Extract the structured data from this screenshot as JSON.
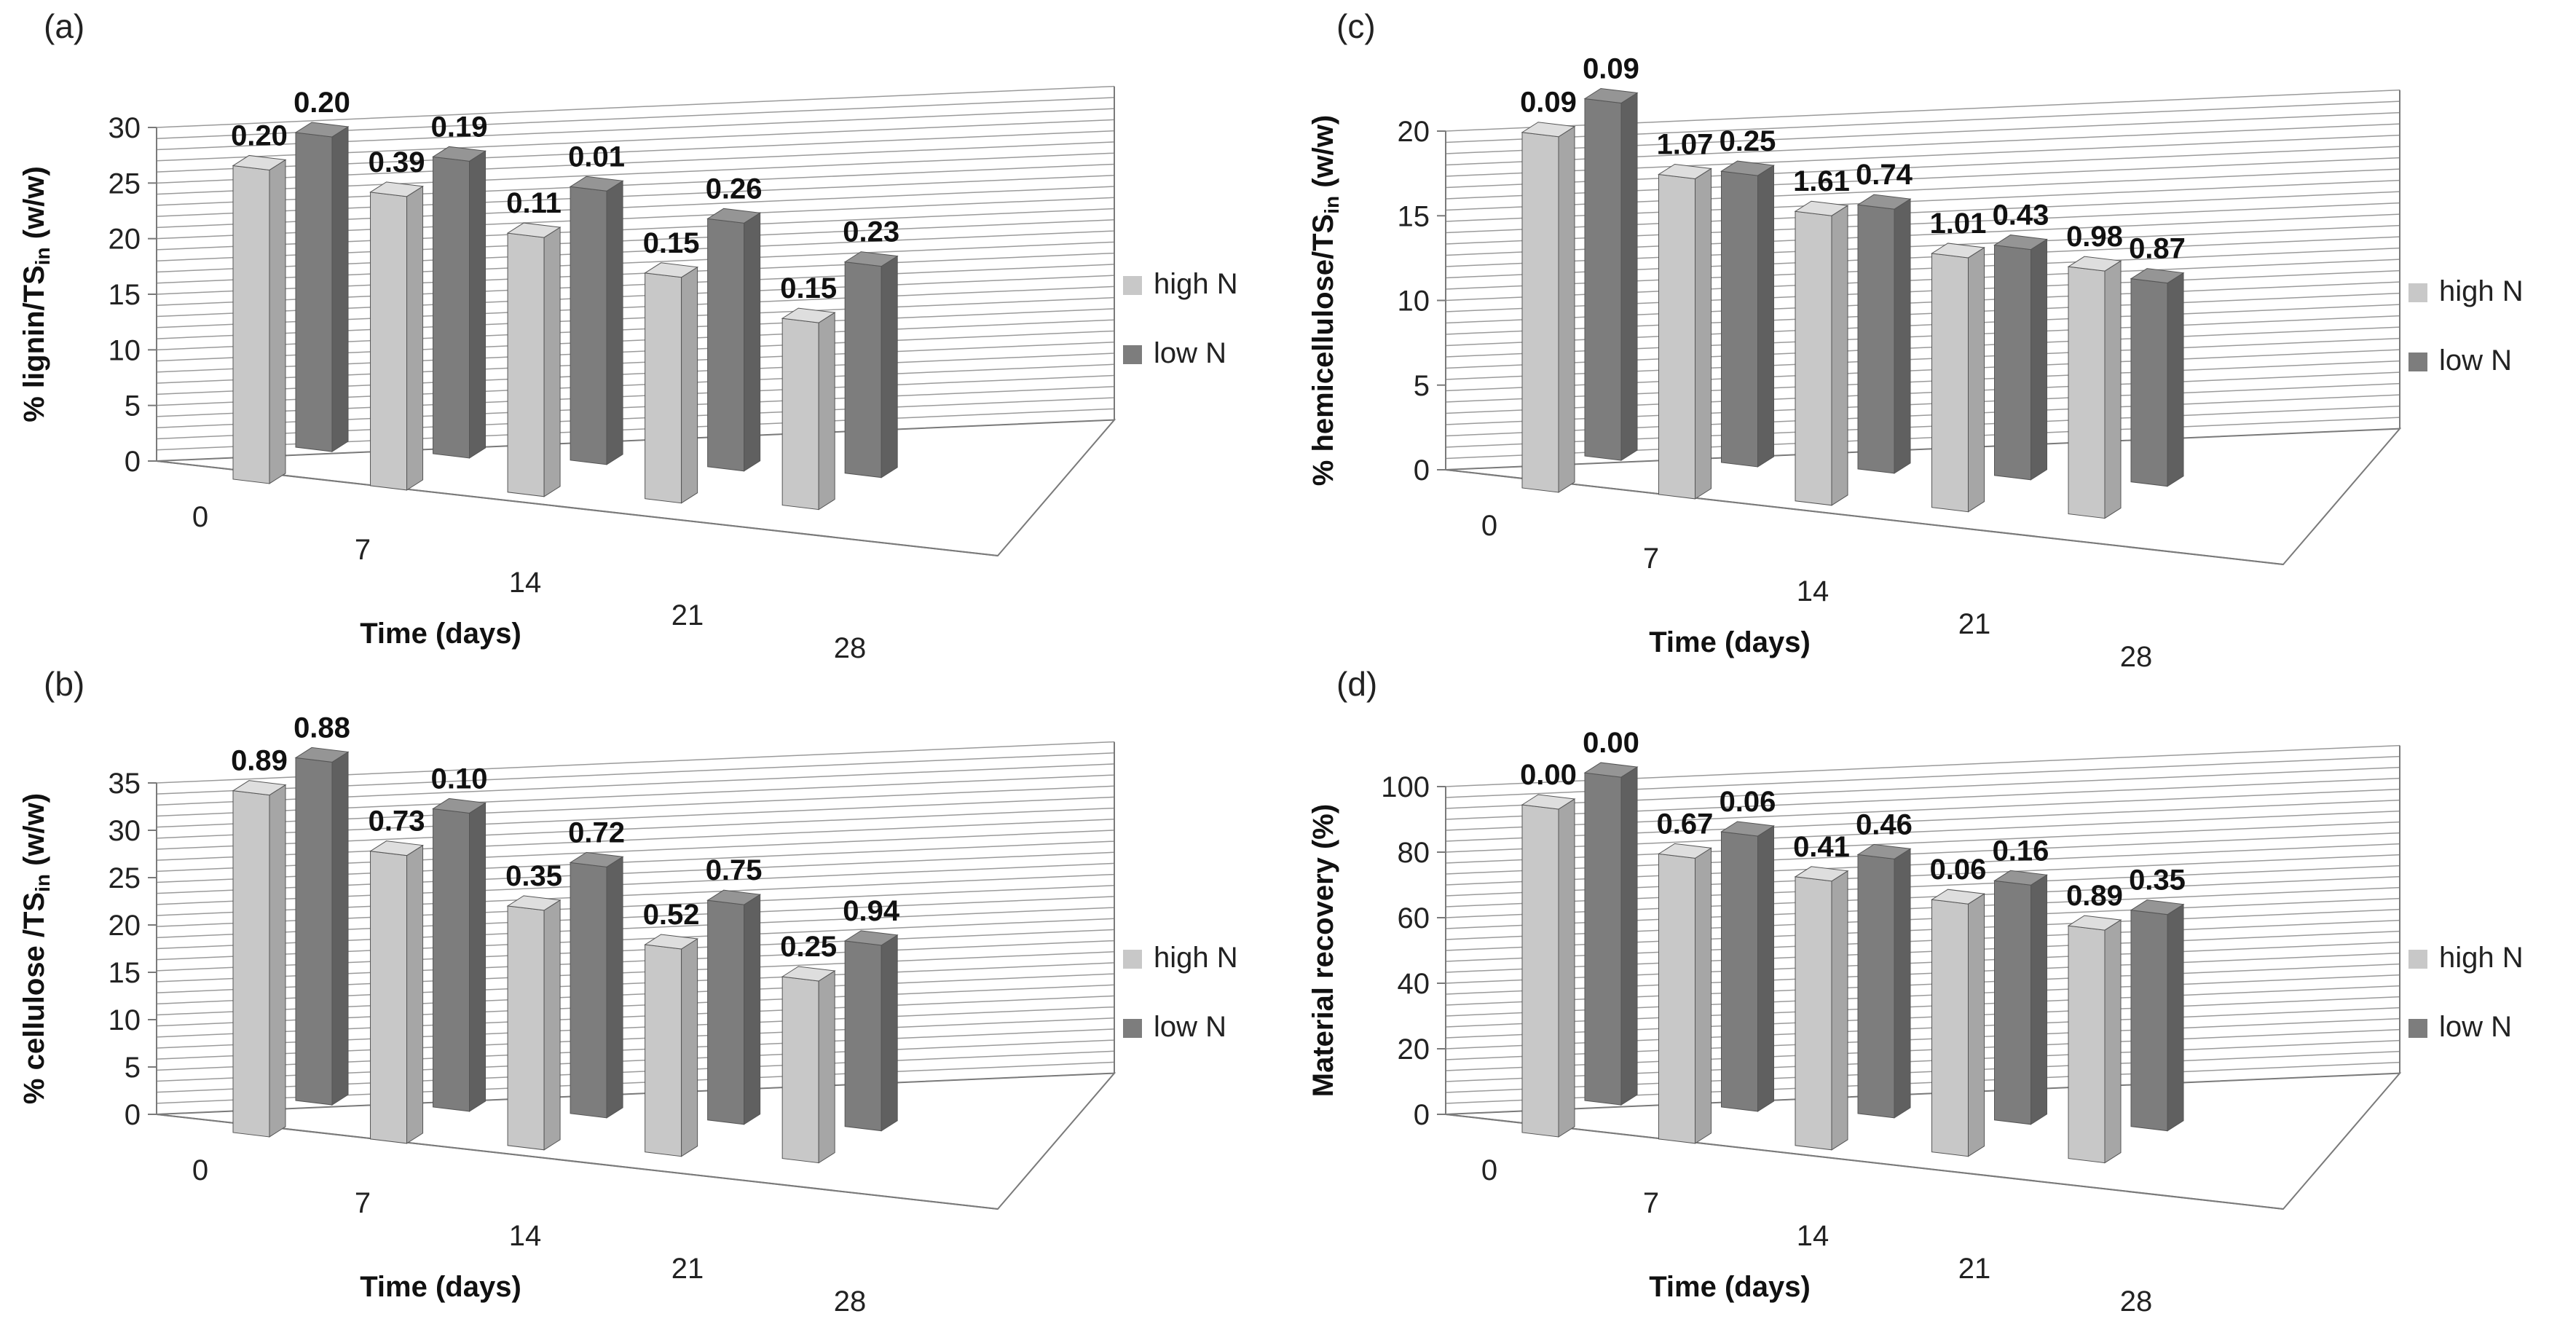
{
  "legend": {
    "high": "high N",
    "low": "low N"
  },
  "colors": {
    "high_front": "#c8c8c8",
    "high_side": "#a6a6a6",
    "high_top": "#dedede",
    "low_front": "#7d7d7d",
    "low_side": "#606060",
    "low_top": "#959595"
  },
  "chart_data": [
    {
      "panel": "(a)",
      "type": "bar",
      "title": "",
      "xlabel": "Time (days)",
      "ylabel_main": "% lignin/TS",
      "ylabel_sub": "in",
      "ylabel_end": " (w/w)",
      "categories": [
        "0",
        "7",
        "14",
        "21",
        "28"
      ],
      "ylim": [
        0,
        30
      ],
      "yticks": [
        "0",
        "5",
        "10",
        "15",
        "20",
        "25",
        "30"
      ],
      "series": [
        {
          "name": "high N",
          "values": [
            28.2,
            26.4,
            23.3,
            20.3,
            16.8
          ],
          "labels": [
            "0.20",
            "0.39",
            "0.11",
            "0.15",
            "0.15"
          ]
        },
        {
          "name": "low N",
          "values": [
            28.3,
            26.7,
            24.6,
            22.3,
            19.0
          ],
          "labels": [
            "0.20",
            "0.19",
            "0.01",
            "0.26",
            "0.23"
          ]
        }
      ]
    },
    {
      "panel": "(b)",
      "type": "bar",
      "title": "",
      "xlabel": "Time (days)",
      "ylabel_main": "% cellulose /TS",
      "ylabel_sub": "in",
      "ylabel_end": " (w/w)",
      "categories": [
        "0",
        "7",
        "14",
        "21",
        "28"
      ],
      "ylim": [
        0,
        35
      ],
      "yticks": [
        "0",
        "5",
        "10",
        "15",
        "20",
        "25",
        "30",
        "35"
      ],
      "series": [
        {
          "name": "high N",
          "values": [
            36.1,
            30.4,
            25.3,
            21.9,
            19.2
          ],
          "labels": [
            "0.89",
            "0.73",
            "0.35",
            "0.52",
            "0.25"
          ]
        },
        {
          "name": "low N",
          "values": [
            36.2,
            31.5,
            26.5,
            23.2,
            19.6
          ],
          "labels": [
            "0.88",
            "0.10",
            "0.72",
            "0.75",
            "0.94"
          ]
        }
      ]
    },
    {
      "panel": "(c)",
      "type": "bar",
      "title": "",
      "xlabel": "Time (days)",
      "ylabel_main": "% hemicellulose/TS",
      "ylabel_sub": "in",
      "ylabel_end": " (w/w)",
      "categories": [
        "0",
        "7",
        "14",
        "21",
        "28"
      ],
      "ylim": [
        0,
        20
      ],
      "yticks": [
        "0",
        "5",
        "10",
        "15",
        "20"
      ],
      "series": [
        {
          "name": "high N",
          "values": [
            21.0,
            18.9,
            17.1,
            15.0,
            14.6
          ],
          "labels": [
            "0.09",
            "1.07",
            "1.61",
            "1.01",
            "0.98"
          ]
        },
        {
          "name": "low N",
          "values": [
            21.1,
            17.2,
            15.6,
            13.6,
            12.0
          ],
          "labels": [
            "0.09",
            "0.25",
            "0.74",
            "0.43",
            "0.87"
          ]
        }
      ]
    },
    {
      "panel": "(d)",
      "type": "bar",
      "title": "",
      "xlabel": "Time (days)",
      "ylabel_main": "Material recovery (%)",
      "ylabel_sub": "",
      "ylabel_end": "",
      "categories": [
        "0",
        "7",
        "14",
        "21",
        "28"
      ],
      "ylim": [
        0,
        100
      ],
      "yticks": [
        "0",
        "20",
        "40",
        "60",
        "80",
        "100"
      ],
      "series": [
        {
          "name": "high N",
          "values": [
            100,
            87,
            82,
            77,
            71
          ],
          "labels": [
            "0.00",
            "0.67",
            "0.41",
            "0.06",
            "0.89"
          ]
        },
        {
          "name": "low N",
          "values": [
            100,
            84,
            79,
            73,
            66
          ],
          "labels": [
            "0.00",
            "0.06",
            "0.46",
            "0.16",
            "0.35"
          ]
        }
      ]
    }
  ]
}
